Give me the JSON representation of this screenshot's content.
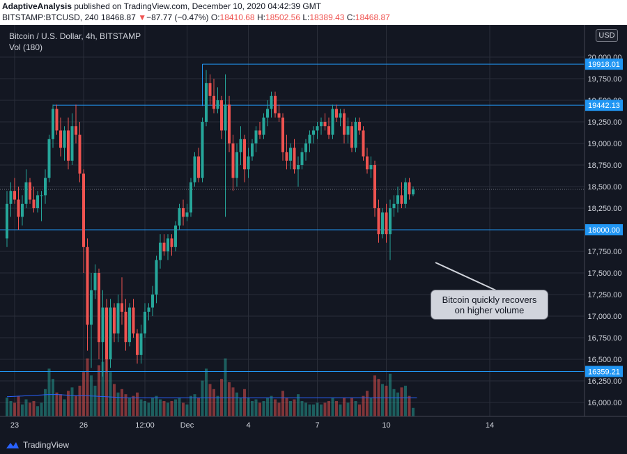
{
  "header": {
    "author": "AdaptiveAnalysis",
    "published": "published on TradingView.com, December 10, 2020 04:42:39 GMT",
    "symbol": "BITSTAMP:BTCUSD, 240",
    "last": "18468.87",
    "arrow": "▼",
    "change": "−87.77 (−0.47%)",
    "o_label": "O:",
    "o_value": "18410.68",
    "h_label": "H:",
    "h_value": "18502.56",
    "l_label": "L:",
    "l_value": "18389.43",
    "c_label": "C:",
    "c_value": "18468.87"
  },
  "legend": {
    "title": "Bitcoin / U.S. Dollar, 4h, BITSTAMP",
    "volume": "Vol (180)"
  },
  "currency": "USD",
  "annotation": {
    "line1": "Bitcoin quickly recovers",
    "line2": "on higher volume"
  },
  "footer": {
    "brand": "TradingView"
  },
  "colors": {
    "background": "#131722",
    "up": "#26a69a",
    "down": "#ef5350",
    "level_line": "#2196f3",
    "grid": "#2a2e39",
    "volume_ma": "#2962ff"
  },
  "chart_data": {
    "type": "candlestick",
    "title": "Bitcoin / U.S. Dollar, 4h, BITSTAMP",
    "y_ticks": [
      16000,
      16250,
      16500,
      16750,
      17000,
      17250,
      17500,
      17750,
      18000,
      18250,
      18500,
      18750,
      19000,
      19250,
      19500,
      19750,
      20000
    ],
    "ylim": [
      15800,
      20250
    ],
    "x_ticks": [
      "23",
      "26",
      "12:00",
      "Dec",
      "4",
      "7",
      "10",
      "14"
    ],
    "x_tick_bars": [
      2,
      20,
      36,
      47,
      63,
      81,
      99,
      126
    ],
    "bar_count_visible": 138,
    "levels": [
      {
        "value": 19918.01,
        "label": "19918.01",
        "start_bar": 51
      },
      {
        "value": 19442.13,
        "label": "19442.13",
        "start_bar": 12
      },
      {
        "value": 18000.0,
        "label": "18000.00",
        "start_bar": 0
      },
      {
        "value": 16359.21,
        "label": "16359.21",
        "start_bar": 0
      }
    ],
    "current_price": 18468.87,
    "volume_max": 2.0,
    "candles": [
      {
        "o": 17900,
        "h": 18450,
        "l": 17800,
        "c": 18300,
        "v": 0.55
      },
      {
        "o": 18300,
        "h": 18550,
        "l": 18150,
        "c": 18450,
        "v": 0.45
      },
      {
        "o": 18450,
        "h": 18600,
        "l": 18300,
        "c": 18350,
        "v": 0.4
      },
      {
        "o": 18350,
        "h": 18500,
        "l": 18000,
        "c": 18150,
        "v": 0.6
      },
      {
        "o": 18150,
        "h": 18400,
        "l": 18050,
        "c": 18300,
        "v": 0.35
      },
      {
        "o": 18300,
        "h": 18700,
        "l": 18250,
        "c": 18550,
        "v": 0.5
      },
      {
        "o": 18550,
        "h": 18600,
        "l": 18300,
        "c": 18350,
        "v": 0.4
      },
      {
        "o": 18350,
        "h": 18500,
        "l": 18200,
        "c": 18250,
        "v": 0.45
      },
      {
        "o": 18250,
        "h": 18450,
        "l": 18200,
        "c": 18400,
        "v": 0.3
      },
      {
        "o": 18400,
        "h": 18450,
        "l": 18100,
        "c": 18400,
        "v": 0.4
      },
      {
        "o": 18400,
        "h": 18700,
        "l": 18300,
        "c": 18600,
        "v": 0.8
      },
      {
        "o": 18600,
        "h": 19100,
        "l": 18550,
        "c": 19050,
        "v": 1.4
      },
      {
        "o": 19050,
        "h": 19450,
        "l": 18950,
        "c": 19400,
        "v": 1.1
      },
      {
        "o": 19400,
        "h": 19450,
        "l": 19100,
        "c": 19150,
        "v": 0.7
      },
      {
        "o": 19150,
        "h": 19300,
        "l": 18850,
        "c": 18950,
        "v": 0.65
      },
      {
        "o": 18950,
        "h": 19200,
        "l": 18800,
        "c": 19150,
        "v": 0.5
      },
      {
        "o": 19150,
        "h": 19300,
        "l": 18700,
        "c": 18800,
        "v": 0.75
      },
      {
        "o": 18800,
        "h": 19350,
        "l": 18750,
        "c": 19200,
        "v": 0.85
      },
      {
        "o": 19200,
        "h": 19450,
        "l": 19000,
        "c": 19100,
        "v": 0.6
      },
      {
        "o": 19100,
        "h": 19250,
        "l": 18550,
        "c": 18650,
        "v": 0.9
      },
      {
        "o": 18650,
        "h": 18700,
        "l": 17500,
        "c": 17800,
        "v": 1.3
      },
      {
        "o": 17800,
        "h": 17900,
        "l": 16600,
        "c": 16900,
        "v": 1.7
      },
      {
        "o": 16900,
        "h": 17500,
        "l": 16400,
        "c": 17300,
        "v": 1.2
      },
      {
        "o": 17300,
        "h": 17600,
        "l": 17200,
        "c": 17500,
        "v": 0.9
      },
      {
        "o": 17500,
        "h": 17550,
        "l": 16500,
        "c": 16700,
        "v": 1.5
      },
      {
        "o": 16700,
        "h": 17300,
        "l": 16300,
        "c": 17100,
        "v": 1.6
      },
      {
        "o": 17100,
        "h": 17200,
        "l": 16350,
        "c": 16500,
        "v": 1.8
      },
      {
        "o": 16500,
        "h": 17200,
        "l": 16400,
        "c": 17100,
        "v": 1.3
      },
      {
        "o": 17100,
        "h": 17150,
        "l": 16700,
        "c": 16800,
        "v": 0.95
      },
      {
        "o": 16800,
        "h": 17250,
        "l": 16700,
        "c": 17150,
        "v": 0.7
      },
      {
        "o": 17150,
        "h": 17450,
        "l": 16900,
        "c": 17050,
        "v": 0.8
      },
      {
        "o": 17050,
        "h": 17200,
        "l": 16600,
        "c": 16700,
        "v": 0.65
      },
      {
        "o": 16700,
        "h": 17150,
        "l": 16650,
        "c": 17100,
        "v": 0.55
      },
      {
        "o": 17100,
        "h": 17200,
        "l": 16750,
        "c": 16800,
        "v": 0.6
      },
      {
        "o": 16800,
        "h": 16850,
        "l": 16450,
        "c": 16550,
        "v": 0.7
      },
      {
        "o": 16550,
        "h": 16900,
        "l": 16450,
        "c": 16800,
        "v": 0.5
      },
      {
        "o": 16800,
        "h": 17150,
        "l": 16750,
        "c": 17050,
        "v": 0.45
      },
      {
        "o": 17050,
        "h": 17150,
        "l": 16950,
        "c": 17100,
        "v": 0.4
      },
      {
        "o": 17100,
        "h": 17350,
        "l": 17000,
        "c": 17250,
        "v": 0.55
      },
      {
        "o": 17250,
        "h": 17700,
        "l": 17150,
        "c": 17650,
        "v": 0.6
      },
      {
        "o": 17650,
        "h": 17950,
        "l": 17550,
        "c": 17850,
        "v": 0.5
      },
      {
        "o": 17850,
        "h": 17950,
        "l": 17700,
        "c": 17750,
        "v": 0.45
      },
      {
        "o": 17750,
        "h": 17950,
        "l": 17650,
        "c": 17900,
        "v": 0.4
      },
      {
        "o": 17900,
        "h": 17950,
        "l": 17700,
        "c": 17800,
        "v": 0.45
      },
      {
        "o": 17800,
        "h": 18100,
        "l": 17750,
        "c": 18050,
        "v": 0.5
      },
      {
        "o": 18050,
        "h": 18300,
        "l": 18000,
        "c": 18250,
        "v": 0.55
      },
      {
        "o": 18250,
        "h": 18350,
        "l": 18050,
        "c": 18150,
        "v": 0.4
      },
      {
        "o": 18150,
        "h": 18300,
        "l": 18100,
        "c": 18200,
        "v": 0.35
      },
      {
        "o": 18200,
        "h": 18600,
        "l": 18150,
        "c": 18550,
        "v": 0.6
      },
      {
        "o": 18550,
        "h": 18900,
        "l": 18500,
        "c": 18850,
        "v": 0.65
      },
      {
        "o": 18850,
        "h": 18950,
        "l": 18550,
        "c": 18600,
        "v": 0.55
      },
      {
        "o": 18600,
        "h": 19300,
        "l": 18550,
        "c": 19250,
        "v": 1.05
      },
      {
        "o": 19250,
        "h": 19850,
        "l": 19200,
        "c": 19700,
        "v": 1.4
      },
      {
        "o": 19700,
        "h": 19800,
        "l": 19450,
        "c": 19550,
        "v": 0.95
      },
      {
        "o": 19550,
        "h": 19750,
        "l": 19350,
        "c": 19400,
        "v": 0.8
      },
      {
        "o": 19400,
        "h": 19650,
        "l": 19350,
        "c": 19500,
        "v": 0.6
      },
      {
        "o": 19500,
        "h": 19550,
        "l": 19050,
        "c": 19150,
        "v": 1.1
      },
      {
        "o": 19150,
        "h": 19800,
        "l": 18150,
        "c": 19450,
        "v": 1.7
      },
      {
        "o": 19450,
        "h": 19550,
        "l": 18900,
        "c": 19000,
        "v": 1.0
      },
      {
        "o": 19000,
        "h": 19100,
        "l": 18450,
        "c": 18600,
        "v": 0.85
      },
      {
        "o": 18600,
        "h": 19000,
        "l": 18500,
        "c": 18900,
        "v": 0.7
      },
      {
        "o": 18900,
        "h": 19200,
        "l": 18750,
        "c": 19050,
        "v": 0.55
      },
      {
        "o": 19050,
        "h": 19100,
        "l": 18550,
        "c": 18700,
        "v": 0.8
      },
      {
        "o": 18700,
        "h": 18950,
        "l": 18600,
        "c": 18850,
        "v": 0.55
      },
      {
        "o": 18850,
        "h": 19050,
        "l": 18800,
        "c": 19000,
        "v": 0.45
      },
      {
        "o": 19000,
        "h": 19200,
        "l": 18900,
        "c": 19150,
        "v": 0.5
      },
      {
        "o": 19150,
        "h": 19250,
        "l": 19050,
        "c": 19100,
        "v": 0.4
      },
      {
        "o": 19100,
        "h": 19350,
        "l": 19050,
        "c": 19300,
        "v": 0.45
      },
      {
        "o": 19300,
        "h": 19500,
        "l": 19200,
        "c": 19400,
        "v": 0.55
      },
      {
        "o": 19400,
        "h": 19600,
        "l": 19300,
        "c": 19550,
        "v": 0.6
      },
      {
        "o": 19550,
        "h": 19600,
        "l": 19300,
        "c": 19350,
        "v": 0.5
      },
      {
        "o": 19350,
        "h": 19450,
        "l": 19250,
        "c": 19300,
        "v": 0.4
      },
      {
        "o": 19300,
        "h": 19350,
        "l": 18800,
        "c": 18900,
        "v": 0.75
      },
      {
        "o": 18900,
        "h": 19100,
        "l": 18700,
        "c": 18800,
        "v": 0.55
      },
      {
        "o": 18800,
        "h": 19000,
        "l": 18700,
        "c": 18950,
        "v": 0.45
      },
      {
        "o": 18950,
        "h": 19050,
        "l": 18650,
        "c": 18700,
        "v": 0.5
      },
      {
        "o": 18700,
        "h": 18850,
        "l": 18500,
        "c": 18750,
        "v": 0.65
      },
      {
        "o": 18750,
        "h": 18950,
        "l": 18700,
        "c": 18900,
        "v": 0.45
      },
      {
        "o": 18900,
        "h": 19050,
        "l": 18800,
        "c": 19000,
        "v": 0.4
      },
      {
        "o": 19000,
        "h": 19150,
        "l": 18900,
        "c": 19100,
        "v": 0.35
      },
      {
        "o": 19100,
        "h": 19200,
        "l": 19000,
        "c": 19150,
        "v": 0.35
      },
      {
        "o": 19150,
        "h": 19250,
        "l": 19050,
        "c": 19200,
        "v": 0.4
      },
      {
        "o": 19200,
        "h": 19300,
        "l": 19100,
        "c": 19250,
        "v": 0.35
      },
      {
        "o": 19250,
        "h": 19350,
        "l": 19150,
        "c": 19200,
        "v": 0.4
      },
      {
        "o": 19200,
        "h": 19300,
        "l": 19050,
        "c": 19100,
        "v": 0.45
      },
      {
        "o": 19100,
        "h": 19450,
        "l": 19050,
        "c": 19400,
        "v": 0.55
      },
      {
        "o": 19400,
        "h": 19450,
        "l": 19250,
        "c": 19300,
        "v": 0.45
      },
      {
        "o": 19300,
        "h": 19400,
        "l": 19200,
        "c": 19350,
        "v": 0.35
      },
      {
        "o": 19350,
        "h": 19400,
        "l": 19000,
        "c": 19100,
        "v": 0.55
      },
      {
        "o": 19100,
        "h": 19300,
        "l": 19000,
        "c": 19200,
        "v": 0.4
      },
      {
        "o": 19200,
        "h": 19250,
        "l": 18900,
        "c": 18950,
        "v": 0.55
      },
      {
        "o": 18950,
        "h": 19300,
        "l": 18900,
        "c": 19250,
        "v": 0.45
      },
      {
        "o": 19250,
        "h": 19300,
        "l": 19100,
        "c": 19150,
        "v": 0.35
      },
      {
        "o": 19150,
        "h": 19200,
        "l": 18800,
        "c": 18850,
        "v": 0.6
      },
      {
        "o": 18850,
        "h": 18950,
        "l": 18650,
        "c": 18700,
        "v": 0.75
      },
      {
        "o": 18700,
        "h": 18850,
        "l": 18600,
        "c": 18750,
        "v": 0.55
      },
      {
        "o": 18750,
        "h": 18800,
        "l": 18150,
        "c": 18250,
        "v": 1.2
      },
      {
        "o": 18250,
        "h": 18350,
        "l": 17850,
        "c": 17950,
        "v": 1.1
      },
      {
        "o": 17950,
        "h": 18250,
        "l": 17900,
        "c": 18200,
        "v": 0.95
      },
      {
        "o": 18200,
        "h": 18300,
        "l": 17850,
        "c": 17950,
        "v": 0.9
      },
      {
        "o": 17950,
        "h": 18350,
        "l": 17650,
        "c": 18250,
        "v": 1.25
      },
      {
        "o": 18250,
        "h": 18400,
        "l": 18150,
        "c": 18300,
        "v": 0.8
      },
      {
        "o": 18300,
        "h": 18500,
        "l": 18200,
        "c": 18400,
        "v": 0.7
      },
      {
        "o": 18400,
        "h": 18550,
        "l": 18250,
        "c": 18300,
        "v": 0.85
      },
      {
        "o": 18300,
        "h": 18600,
        "l": 18250,
        "c": 18550,
        "v": 0.9
      },
      {
        "o": 18550,
        "h": 18600,
        "l": 18350,
        "c": 18410,
        "v": 0.6
      },
      {
        "o": 18410,
        "h": 18502,
        "l": 18389,
        "c": 18469,
        "v": 0.25
      }
    ],
    "volume_ma": [
      0.55,
      0.56,
      0.57,
      0.58,
      0.59,
      0.6,
      0.61,
      0.62,
      0.63,
      0.64,
      0.65,
      0.66,
      0.66,
      0.66,
      0.65,
      0.64,
      0.63,
      0.62,
      0.61,
      0.6,
      0.6,
      0.6,
      0.59,
      0.58,
      0.57,
      0.56,
      0.55,
      0.54,
      0.53,
      0.52,
      0.51,
      0.5,
      0.5,
      0.5,
      0.5,
      0.5,
      0.5,
      0.5,
      0.5,
      0.5,
      0.5,
      0.5,
      0.5,
      0.5,
      0.5,
      0.5,
      0.5,
      0.5,
      0.5,
      0.5,
      0.5,
      0.5,
      0.5,
      0.5,
      0.5,
      0.5,
      0.5,
      0.5,
      0.5,
      0.5,
      0.5,
      0.5,
      0.5,
      0.5,
      0.5,
      0.5,
      0.5,
      0.5,
      0.5,
      0.5,
      0.5,
      0.5,
      0.5,
      0.5,
      0.5,
      0.5,
      0.5,
      0.5,
      0.5,
      0.5,
      0.5,
      0.5,
      0.5,
      0.5,
      0.5,
      0.5,
      0.5,
      0.5,
      0.5,
      0.5,
      0.5,
      0.5,
      0.5,
      0.5,
      0.5,
      0.5,
      0.5,
      0.5,
      0.5,
      0.5,
      0.5,
      0.5,
      0.5,
      0.5,
      0.5,
      0.5,
      0.5,
      0.5
    ]
  }
}
